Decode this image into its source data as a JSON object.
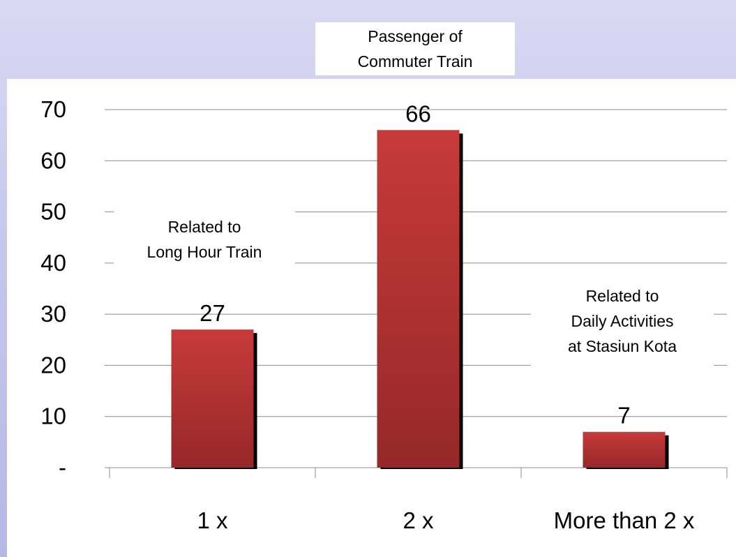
{
  "chart_data": {
    "type": "bar",
    "categories": [
      "1 x",
      "2 x",
      "More than 2 x"
    ],
    "values": [
      27,
      66,
      7
    ],
    "data_labels": [
      "27",
      "66",
      "7"
    ],
    "ylim": [
      0,
      70
    ],
    "y_ticks": [
      {
        "value": 0,
        "label": "-"
      },
      {
        "value": 10,
        "label": "10"
      },
      {
        "value": 20,
        "label": "20"
      },
      {
        "value": 30,
        "label": "30"
      },
      {
        "value": 40,
        "label": "40"
      },
      {
        "value": 50,
        "label": "50"
      },
      {
        "value": 60,
        "label": "60"
      },
      {
        "value": 70,
        "label": "70"
      }
    ],
    "grid": true,
    "legend": "none",
    "bar_color": "#c73a3a",
    "bar_color_dark": "#962828",
    "shadow_color": "#000000",
    "annotations": [
      {
        "id": "commuter",
        "lines": [
          "Passenger of",
          "Commuter Train"
        ]
      },
      {
        "id": "long-hour",
        "lines": [
          "Related to",
          "Long Hour Train"
        ]
      },
      {
        "id": "daily",
        "lines": [
          "Related to",
          "Daily Activities",
          "at Stasiun Kota"
        ]
      }
    ]
  }
}
